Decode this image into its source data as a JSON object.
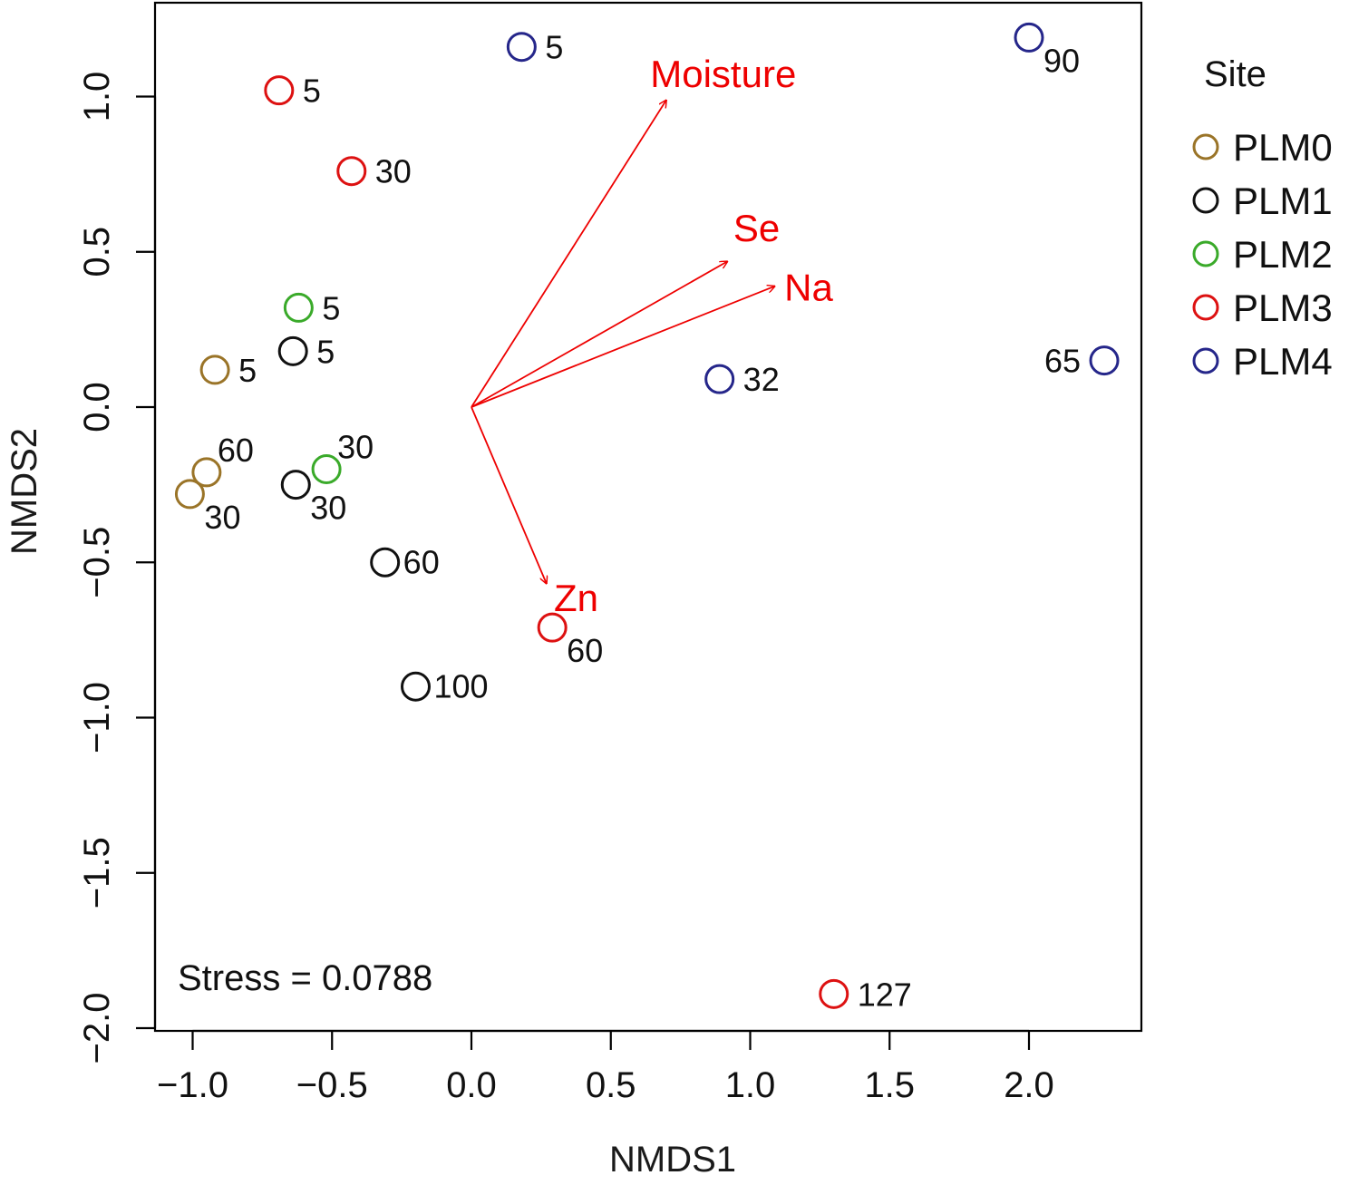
{
  "chart_data": {
    "type": "scatter",
    "title": "",
    "xlabel": "NMDS1",
    "ylabel": "NMDS2",
    "xlim": [
      -1.15,
      2.38
    ],
    "ylim": [
      -2.0,
      1.28
    ],
    "x_ticks": [
      -1.0,
      -0.5,
      0.0,
      0.5,
      1.0,
      1.5,
      2.0
    ],
    "x_tick_labels": [
      "−1.0",
      "−0.5",
      "0.0",
      "0.5",
      "1.0",
      "1.5",
      "2.0"
    ],
    "y_ticks": [
      -2.0,
      -1.5,
      -1.0,
      -0.5,
      0.0,
      0.5,
      1.0
    ],
    "y_tick_labels": [
      "−2.0",
      "−1.5",
      "−1.0",
      "−0.5",
      "0.0",
      "0.5",
      "1.0"
    ],
    "grid": false,
    "legend": {
      "title": "Site",
      "position": "right",
      "entries": [
        {
          "name": "PLM0",
          "color": "#9a7428"
        },
        {
          "name": "PLM1",
          "color": "#111111"
        },
        {
          "name": "PLM2",
          "color": "#3aaa2a"
        },
        {
          "name": "PLM3",
          "color": "#dd1111"
        },
        {
          "name": "PLM4",
          "color": "#25268a"
        }
      ]
    },
    "series": [
      {
        "name": "PLM0",
        "color": "#9a7428",
        "points": [
          {
            "x": -0.92,
            "y": 0.12,
            "label": "5",
            "label_pos": "right"
          },
          {
            "x": -0.95,
            "y": -0.21,
            "label": "60",
            "label_pos": "upper-right"
          },
          {
            "x": -1.01,
            "y": -0.28,
            "label": "30",
            "label_pos": "lower-right"
          }
        ]
      },
      {
        "name": "PLM1",
        "color": "#111111",
        "points": [
          {
            "x": -0.64,
            "y": 0.18,
            "label": "5",
            "label_pos": "right"
          },
          {
            "x": -0.63,
            "y": -0.25,
            "label": "30",
            "label_pos": "lower-right"
          },
          {
            "x": -0.31,
            "y": -0.5,
            "label": "60",
            "label_pos": "right-tight"
          },
          {
            "x": -0.2,
            "y": -0.9,
            "label": "100",
            "label_pos": "right-tight"
          }
        ]
      },
      {
        "name": "PLM2",
        "color": "#3aaa2a",
        "points": [
          {
            "x": -0.62,
            "y": 0.32,
            "label": "5",
            "label_pos": "right"
          },
          {
            "x": -0.52,
            "y": -0.2,
            "label": "30",
            "label_pos": "upper-right"
          }
        ]
      },
      {
        "name": "PLM3",
        "color": "#dd1111",
        "points": [
          {
            "x": -0.69,
            "y": 1.02,
            "label": "5",
            "label_pos": "right"
          },
          {
            "x": -0.43,
            "y": 0.76,
            "label": "30",
            "label_pos": "right"
          },
          {
            "x": 0.29,
            "y": -0.71,
            "label": "60",
            "label_pos": "lower-right"
          },
          {
            "x": 1.3,
            "y": -1.89,
            "label": "127",
            "label_pos": "right"
          }
        ]
      },
      {
        "name": "PLM4",
        "color": "#25268a",
        "points": [
          {
            "x": 0.18,
            "y": 1.16,
            "label": "5",
            "label_pos": "right"
          },
          {
            "x": 2.0,
            "y": 1.19,
            "label": "90",
            "label_pos": "lower-right"
          },
          {
            "x": 0.89,
            "y": 0.09,
            "label": "32",
            "label_pos": "right"
          },
          {
            "x": 2.27,
            "y": 0.15,
            "label": "65",
            "label_pos": "left"
          }
        ]
      }
    ],
    "vectors": {
      "color": "#ee0000",
      "origin": [
        0,
        0
      ],
      "items": [
        {
          "name": "Moisture",
          "x": 0.7,
          "y": 0.99
        },
        {
          "name": "Se",
          "x": 0.92,
          "y": 0.47
        },
        {
          "name": "Na",
          "x": 1.09,
          "y": 0.39
        },
        {
          "name": "Zn",
          "x": 0.27,
          "y": -0.57
        }
      ]
    },
    "annotations": [
      {
        "text": "Stress = 0.0788",
        "position": "bottom-left"
      }
    ]
  }
}
